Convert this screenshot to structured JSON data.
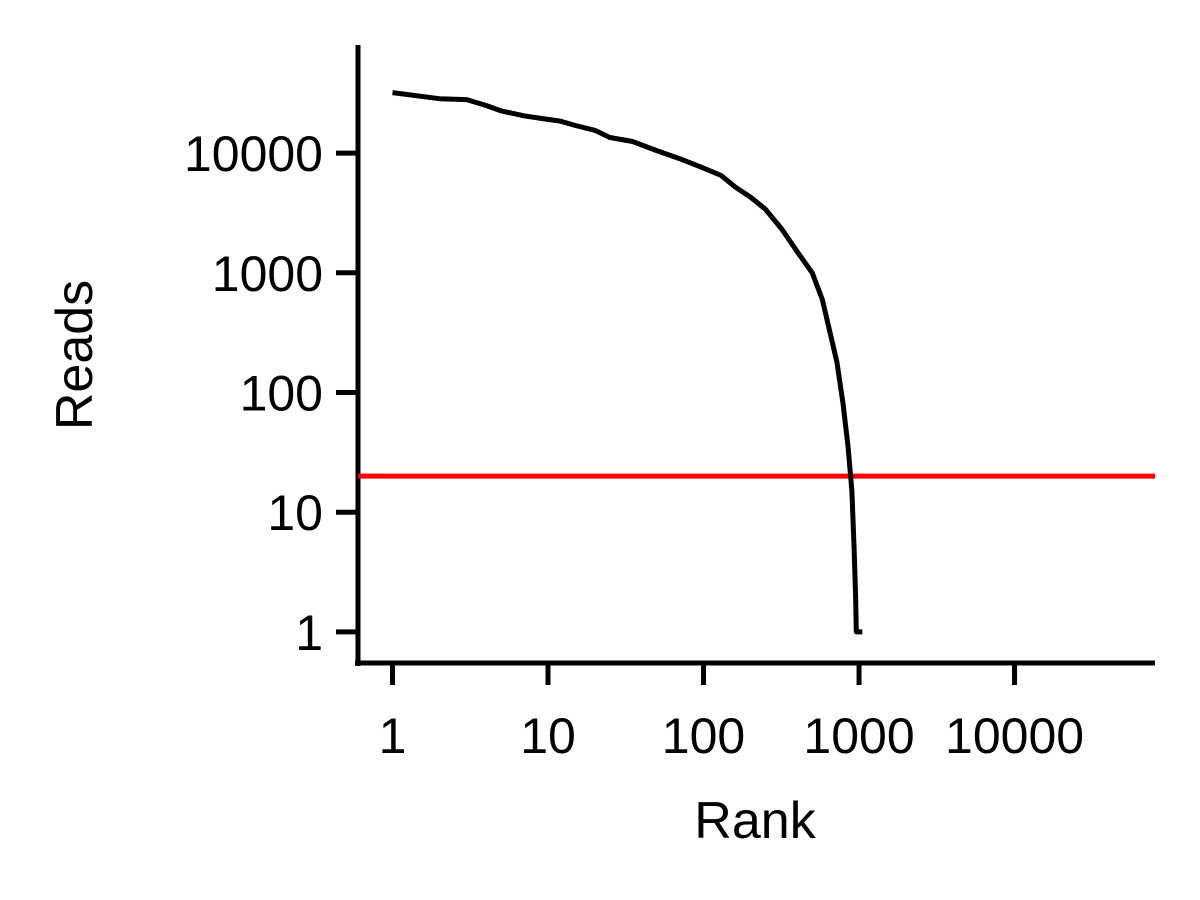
{
  "chart_data": {
    "type": "line",
    "xlabel": "Rank",
    "ylabel": "Reads",
    "x_scale": "log",
    "y_scale": "log",
    "xlim": [
      0.6,
      80000
    ],
    "ylim": [
      0.55,
      80000
    ],
    "x_ticks": [
      {
        "value": 1,
        "label": "1"
      },
      {
        "value": 10,
        "label": "10"
      },
      {
        "value": 100,
        "label": "100"
      },
      {
        "value": 1000,
        "label": "1000"
      },
      {
        "value": 10000,
        "label": "10000"
      }
    ],
    "y_ticks": [
      {
        "value": 1,
        "label": "1"
      },
      {
        "value": 10,
        "label": "10"
      },
      {
        "value": 100,
        "label": "100"
      },
      {
        "value": 1000,
        "label": "1000"
      },
      {
        "value": 10000,
        "label": "10000"
      }
    ],
    "grid": false,
    "series": [
      {
        "color": "#000000",
        "points": [
          [
            1,
            32000
          ],
          [
            2,
            28500
          ],
          [
            3,
            28000
          ],
          [
            4,
            25000
          ],
          [
            5,
            22500
          ],
          [
            7,
            20500
          ],
          [
            9,
            19500
          ],
          [
            12,
            18500
          ],
          [
            15,
            17000
          ],
          [
            20,
            15500
          ],
          [
            25,
            13500
          ],
          [
            35,
            12500
          ],
          [
            50,
            10500
          ],
          [
            70,
            9000
          ],
          [
            100,
            7500
          ],
          [
            130,
            6500
          ],
          [
            160,
            5200
          ],
          [
            200,
            4300
          ],
          [
            250,
            3400
          ],
          [
            320,
            2300
          ],
          [
            400,
            1500
          ],
          [
            500,
            1000
          ],
          [
            580,
            600
          ],
          [
            650,
            320
          ],
          [
            720,
            180
          ],
          [
            790,
            80
          ],
          [
            850,
            35
          ],
          [
            900,
            15
          ],
          [
            930,
            5
          ],
          [
            950,
            2
          ],
          [
            960,
            1
          ],
          [
            1050,
            1
          ]
        ]
      }
    ],
    "reference_lines": [
      {
        "orientation": "horizontal",
        "y": 20,
        "color": "#ff0000"
      }
    ]
  }
}
